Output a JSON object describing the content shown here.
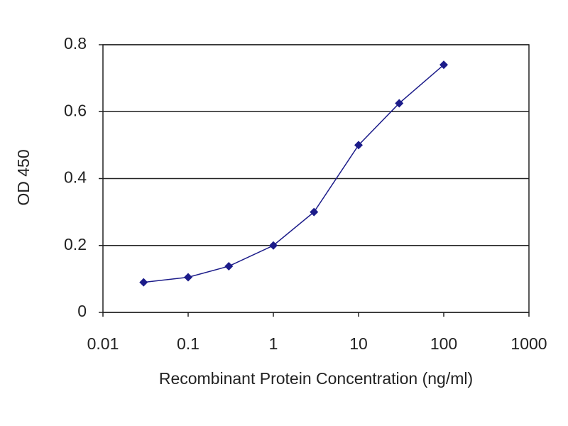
{
  "chart_data": {
    "type": "line",
    "x_label": "Recombinant Protein Concentration (ng/ml)",
    "y_label": "OD 450",
    "x": [
      0.03,
      0.1,
      0.3,
      1,
      3,
      10,
      30,
      100
    ],
    "values": [
      0.09,
      0.105,
      0.138,
      0.2,
      0.3,
      0.5,
      0.625,
      0.74
    ],
    "color": "#1c1c8a",
    "xscale": "log",
    "xlim": [
      0.01,
      1000
    ],
    "xticks": [
      0.01,
      0.1,
      1,
      10,
      100,
      1000
    ],
    "ylim": [
      0,
      0.8
    ],
    "yticks": [
      0,
      0.2,
      0.4,
      0.6,
      0.8
    ],
    "grid": true
  }
}
